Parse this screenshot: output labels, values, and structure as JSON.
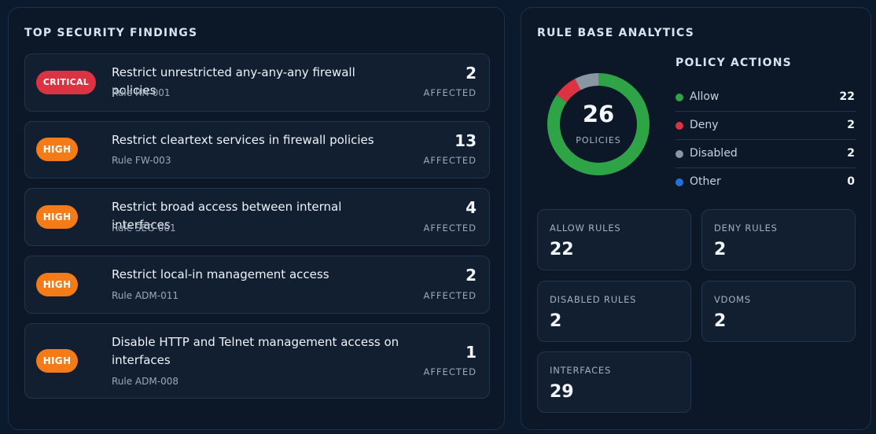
{
  "findings_panel": {
    "title": "TOP SECURITY FINDINGS",
    "items": [
      {
        "severity": "CRITICAL",
        "title": "Restrict unrestricted any-any-any firewall policies",
        "rule": "Rule RH-001",
        "count": "2",
        "affected_label": "AFFECTED"
      },
      {
        "severity": "HIGH",
        "title": "Restrict cleartext services in firewall policies",
        "rule": "Rule FW-003",
        "count": "13",
        "affected_label": "AFFECTED"
      },
      {
        "severity": "HIGH",
        "title": "Restrict broad access between internal interfaces",
        "rule": "Rule SEG-001",
        "count": "4",
        "affected_label": "AFFECTED"
      },
      {
        "severity": "HIGH",
        "title": "Restrict local-in management access",
        "rule": "Rule ADM-011",
        "count": "2",
        "affected_label": "AFFECTED"
      },
      {
        "severity": "HIGH",
        "title": "Disable HTTP and Telnet management access on interfaces",
        "rule": "Rule ADM-008",
        "count": "1",
        "affected_label": "AFFECTED"
      }
    ]
  },
  "analytics_panel": {
    "title": "RULE BASE ANALYTICS",
    "donut": {
      "total": "26",
      "label": "POLICIES",
      "segments": [
        {
          "name": "Allow",
          "value": 22,
          "color": "#2fa447"
        },
        {
          "name": "Deny",
          "value": 2,
          "color": "#dc3343"
        },
        {
          "name": "Disabled",
          "value": 2,
          "color": "#8b96a3"
        },
        {
          "name": "Other",
          "value": 0,
          "color": "#1e74d6"
        }
      ]
    },
    "policy_actions": {
      "title": "POLICY ACTIONS",
      "rows": [
        {
          "label": "Allow",
          "value": "22",
          "color": "#2fa447"
        },
        {
          "label": "Deny",
          "value": "2",
          "color": "#dc3343"
        },
        {
          "label": "Disabled",
          "value": "2",
          "color": "#8b96a3"
        },
        {
          "label": "Other",
          "value": "0",
          "color": "#1e74d6"
        }
      ]
    },
    "stats": [
      {
        "label": "ALLOW RULES",
        "value": "22"
      },
      {
        "label": "DENY RULES",
        "value": "2"
      },
      {
        "label": "DISABLED RULES",
        "value": "2"
      },
      {
        "label": "VDOMS",
        "value": "2"
      },
      {
        "label": "INTERFACES",
        "value": "29"
      }
    ]
  }
}
